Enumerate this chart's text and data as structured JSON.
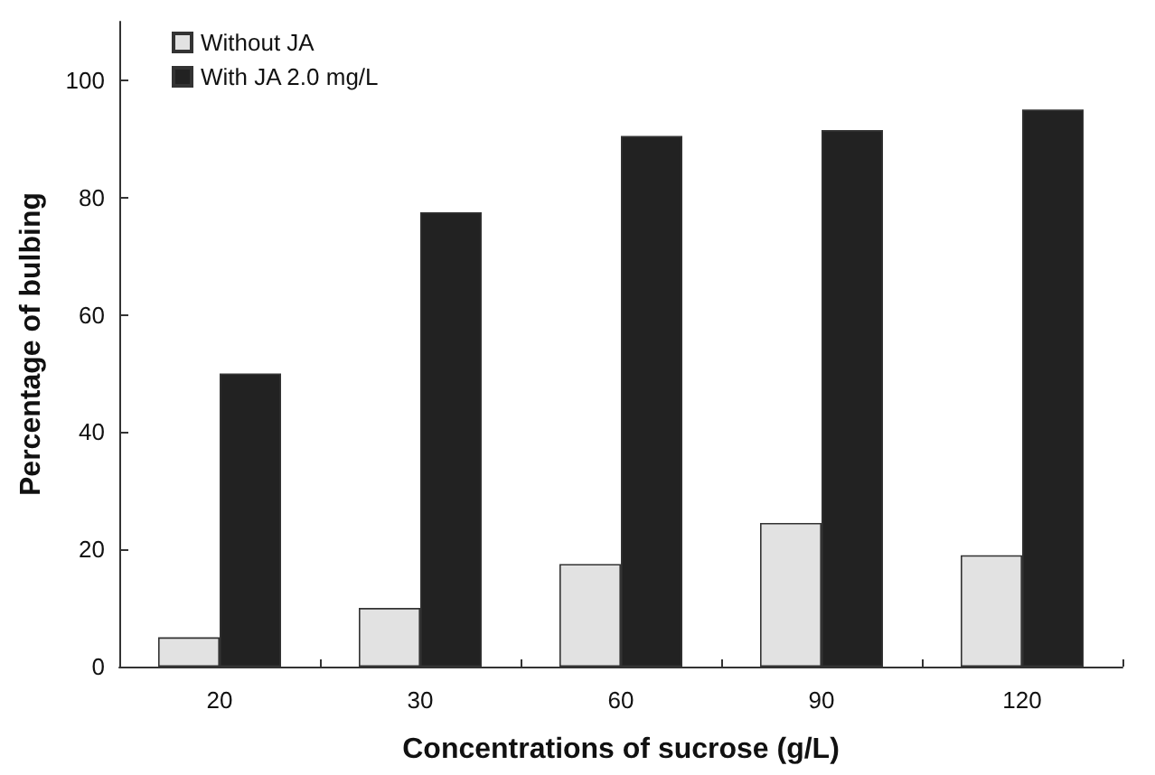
{
  "chart_data": {
    "type": "bar",
    "xlabel": "Concentrations of sucrose (g/L)",
    "ylabel": "Percentage of bulbing",
    "categories": [
      "20",
      "30",
      "60",
      "90",
      "120"
    ],
    "series": [
      {
        "name": "Without JA",
        "color": "#e2e2e2",
        "values": [
          5,
          10,
          17.5,
          24.5,
          19
        ]
      },
      {
        "name": "With JA 2.0 mg/L",
        "color": "#222222",
        "values": [
          50,
          77.5,
          90.5,
          91.5,
          95
        ]
      }
    ],
    "ylim": [
      0,
      110
    ],
    "yticks": [
      0,
      20,
      40,
      60,
      80,
      100
    ],
    "grid": false,
    "legend": "top left"
  }
}
